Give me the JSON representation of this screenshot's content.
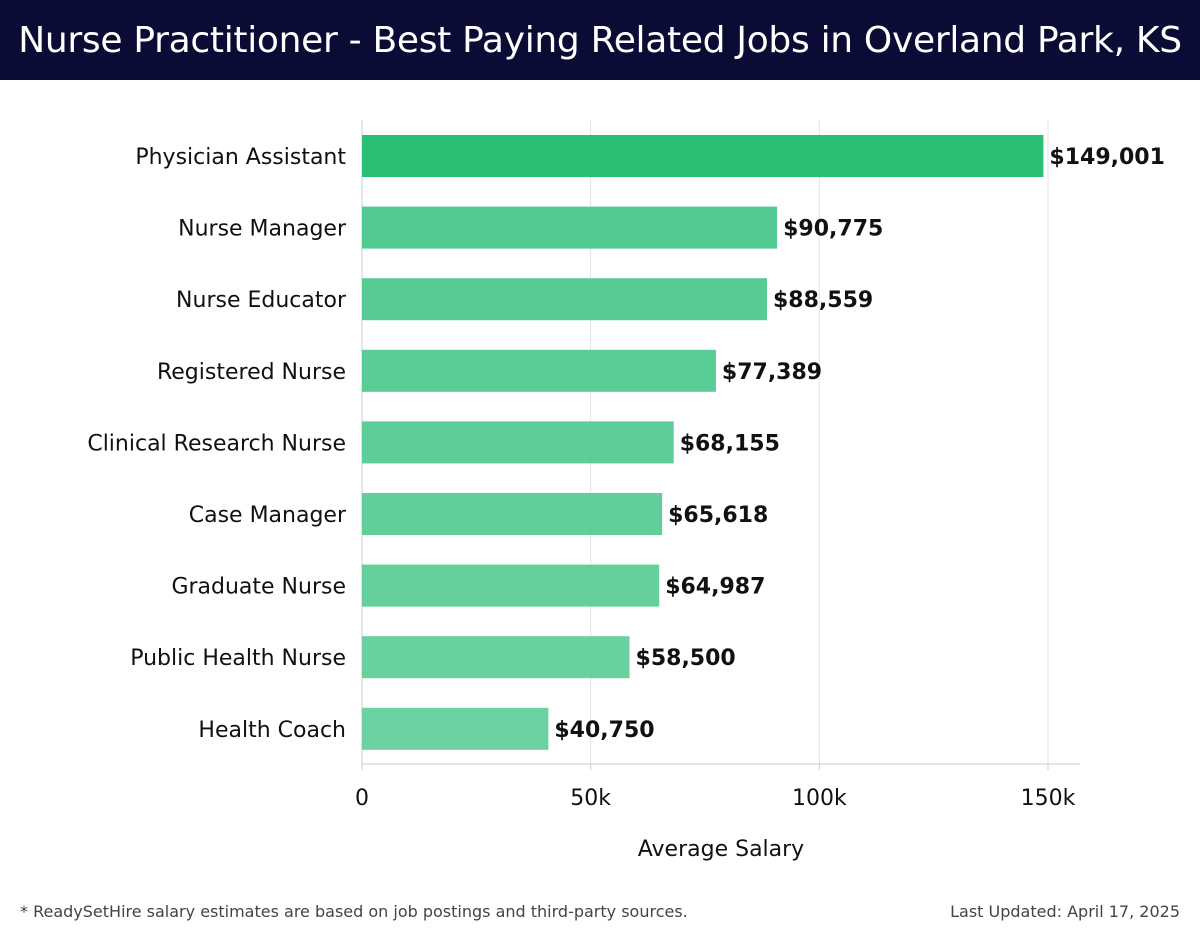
{
  "header": {
    "title": "Nurse Practitioner - Best Paying Related Jobs in Overland Park, KS"
  },
  "footer": {
    "note": "* ReadySetHire salary estimates are based on job postings and third-party sources.",
    "updated": "Last Updated: April 17, 2025"
  },
  "chart_data": {
    "type": "bar",
    "orientation": "horizontal",
    "title": "Nurse Practitioner - Best Paying Related Jobs in Overland Park, KS",
    "xlabel": "Average Salary",
    "ylabel": "",
    "xlim": [
      0,
      157000
    ],
    "x_ticks": [
      0,
      50000,
      100000,
      150000
    ],
    "x_tick_labels": [
      "0",
      "50k",
      "100k",
      "150k"
    ],
    "grid": "vertical",
    "categories": [
      "Physician Assistant",
      "Nurse Manager",
      "Nurse Educator",
      "Registered Nurse",
      "Clinical Research Nurse",
      "Case Manager",
      "Graduate Nurse",
      "Public Health Nurse",
      "Health Coach"
    ],
    "values": [
      149001,
      90775,
      88559,
      77389,
      68155,
      65618,
      64987,
      58500,
      40750
    ],
    "value_labels": [
      "$149,001",
      "$90,775",
      "$88,559",
      "$77,389",
      "$68,155",
      "$65,618",
      "$64,987",
      "$58,500",
      "$40,750"
    ],
    "colors": {
      "top_bar": "#2bbf76",
      "bar": "#4cc88c",
      "grid": "#e4e4e4",
      "axis": "#cccccc"
    }
  }
}
